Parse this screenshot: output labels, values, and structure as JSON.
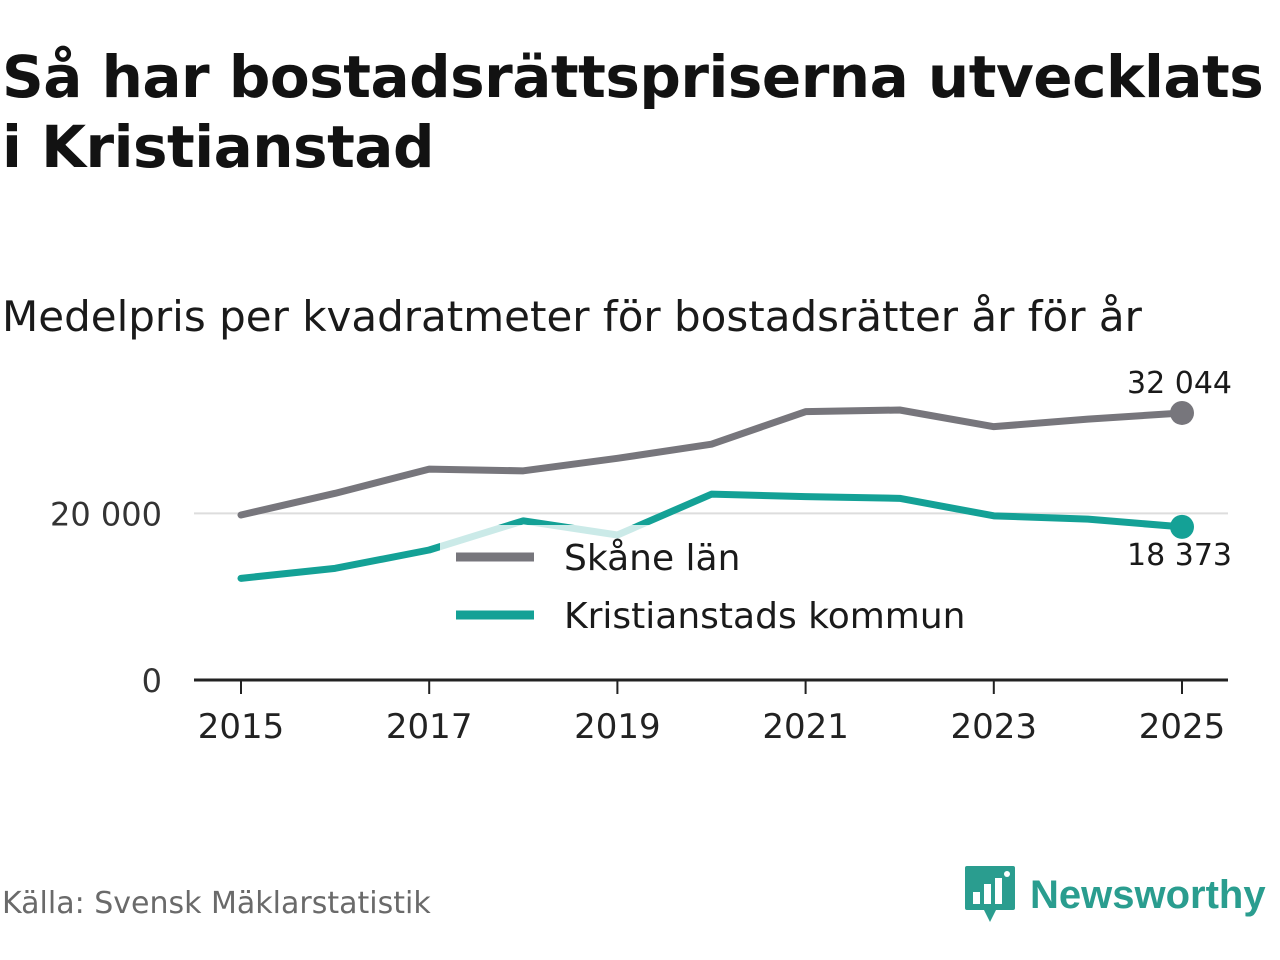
{
  "title": "Så har bostadsrättspriserna utvecklats i Kristianstad",
  "subtitle": "Medelpris per kvadratmeter för bostadsrätter år för år",
  "source": "Källa: Svensk Mäklarstatistik",
  "brand": "Newsworthy",
  "colors": {
    "skane": "#77767c",
    "kristianstad": "#14a196",
    "brand": "#2a9d8f",
    "grid": "#dddddd",
    "axis": "#222222"
  },
  "chart_data": {
    "type": "line",
    "title": "Medelpris per kvadratmeter för bostadsrätter år för år",
    "xlabel": "",
    "ylabel": "",
    "x": [
      2015,
      2016,
      2017,
      2018,
      2019,
      2020,
      2021,
      2022,
      2023,
      2024,
      2025
    ],
    "xticks": [
      "2015",
      "2017",
      "2019",
      "2021",
      "2023",
      "2025"
    ],
    "yticks": [
      {
        "value": 0,
        "label": "0"
      },
      {
        "value": 20000,
        "label": "20 000"
      }
    ],
    "ylim": [
      0,
      36000
    ],
    "xlim": [
      2014.5,
      2025.5
    ],
    "legend_position": "center",
    "series": [
      {
        "name": "Skåne län",
        "color_key": "skane",
        "values": [
          19800,
          22400,
          25300,
          25100,
          26600,
          28300,
          32200,
          32400,
          30400,
          31300,
          32044
        ],
        "end_label": "32 044"
      },
      {
        "name": "Kristianstads kommun",
        "color_key": "kristianstad",
        "values": [
          12200,
          13400,
          15600,
          19100,
          17400,
          22300,
          22000,
          21800,
          19700,
          19300,
          18373
        ],
        "end_label": "18 373"
      }
    ]
  }
}
